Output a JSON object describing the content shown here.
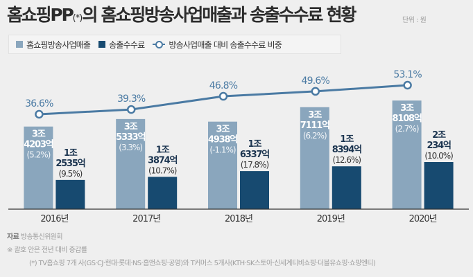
{
  "header": {
    "title_main": "홈쇼핑PP",
    "title_star": "(*)",
    "title_rest": "의 홈쇼핑방송사업매출과 송출수수료 현황",
    "unit": "단위 : 원"
  },
  "legend": {
    "items": [
      {
        "label": "홈쇼핑방송사업매출",
        "color": "#8aa6bd",
        "kind": "bar"
      },
      {
        "label": "송출수수료",
        "color": "#174a70",
        "kind": "bar"
      },
      {
        "label": "방송사업매출 대비 송출수수료 비중",
        "color": "#4a7aa3",
        "kind": "line"
      }
    ]
  },
  "colors": {
    "revenue": "#8aa6bd",
    "fee": "#174a70",
    "ratio": "#4a7aa3",
    "axis": "#333333"
  },
  "chart_data": {
    "type": "bar",
    "title": "홈쇼핑PP(*)의 홈쇼핑방송사업매출과 송출수수료 현황",
    "unit": "원",
    "categories": [
      "2016년",
      "2017년",
      "2018년",
      "2019년",
      "2020년"
    ],
    "series": [
      {
        "name": "홈쇼핑방송사업매출",
        "values_eok": [
          34203,
          35333,
          34938,
          37111,
          38108
        ],
        "labels_top": [
          "3조",
          "3조",
          "3조",
          "3조",
          "3조"
        ],
        "labels_mid": [
          "4203억",
          "5333억",
          "4938억",
          "7111억",
          "8108억"
        ],
        "labels_pct": [
          "(5.2%)",
          "(3.3%)",
          "(-1.1%)",
          "(6.2%)",
          "(2.7%)"
        ]
      },
      {
        "name": "송출수수료",
        "values_eok": [
          12535,
          13874,
          16337,
          18394,
          20234
        ],
        "labels_top": [
          "1조",
          "1조",
          "1조",
          "1조",
          "2조"
        ],
        "labels_mid": [
          "2535억",
          "3874억",
          "6337억",
          "8394억",
          "234억"
        ],
        "labels_pct": [
          "(9.5%)",
          "(10.7%)",
          "(17.8%)",
          "(12.6%)",
          "(10.0%)"
        ]
      },
      {
        "name": "방송사업매출 대비 송출수수료 비중",
        "type": "line",
        "values_pct": [
          36.6,
          39.3,
          46.8,
          49.6,
          53.1
        ],
        "labels": [
          "36.6%",
          "39.3%",
          "46.8%",
          "49.6%",
          "53.1%"
        ]
      }
    ]
  },
  "footer": {
    "source_label": "자료",
    "source": "방송통신위원회",
    "note_mark": "※",
    "note": "괄호 안은 전년 대비 증감률",
    "footnote": "(*) TV홈쇼핑 7개 사(GS·CJ·현대·롯데·NS·홈앤쇼핑·공영)와 T커머스 5개사(KTH·SK스토아·신세계티비쇼핑·더블유쇼핑·쇼핑엔티)"
  }
}
